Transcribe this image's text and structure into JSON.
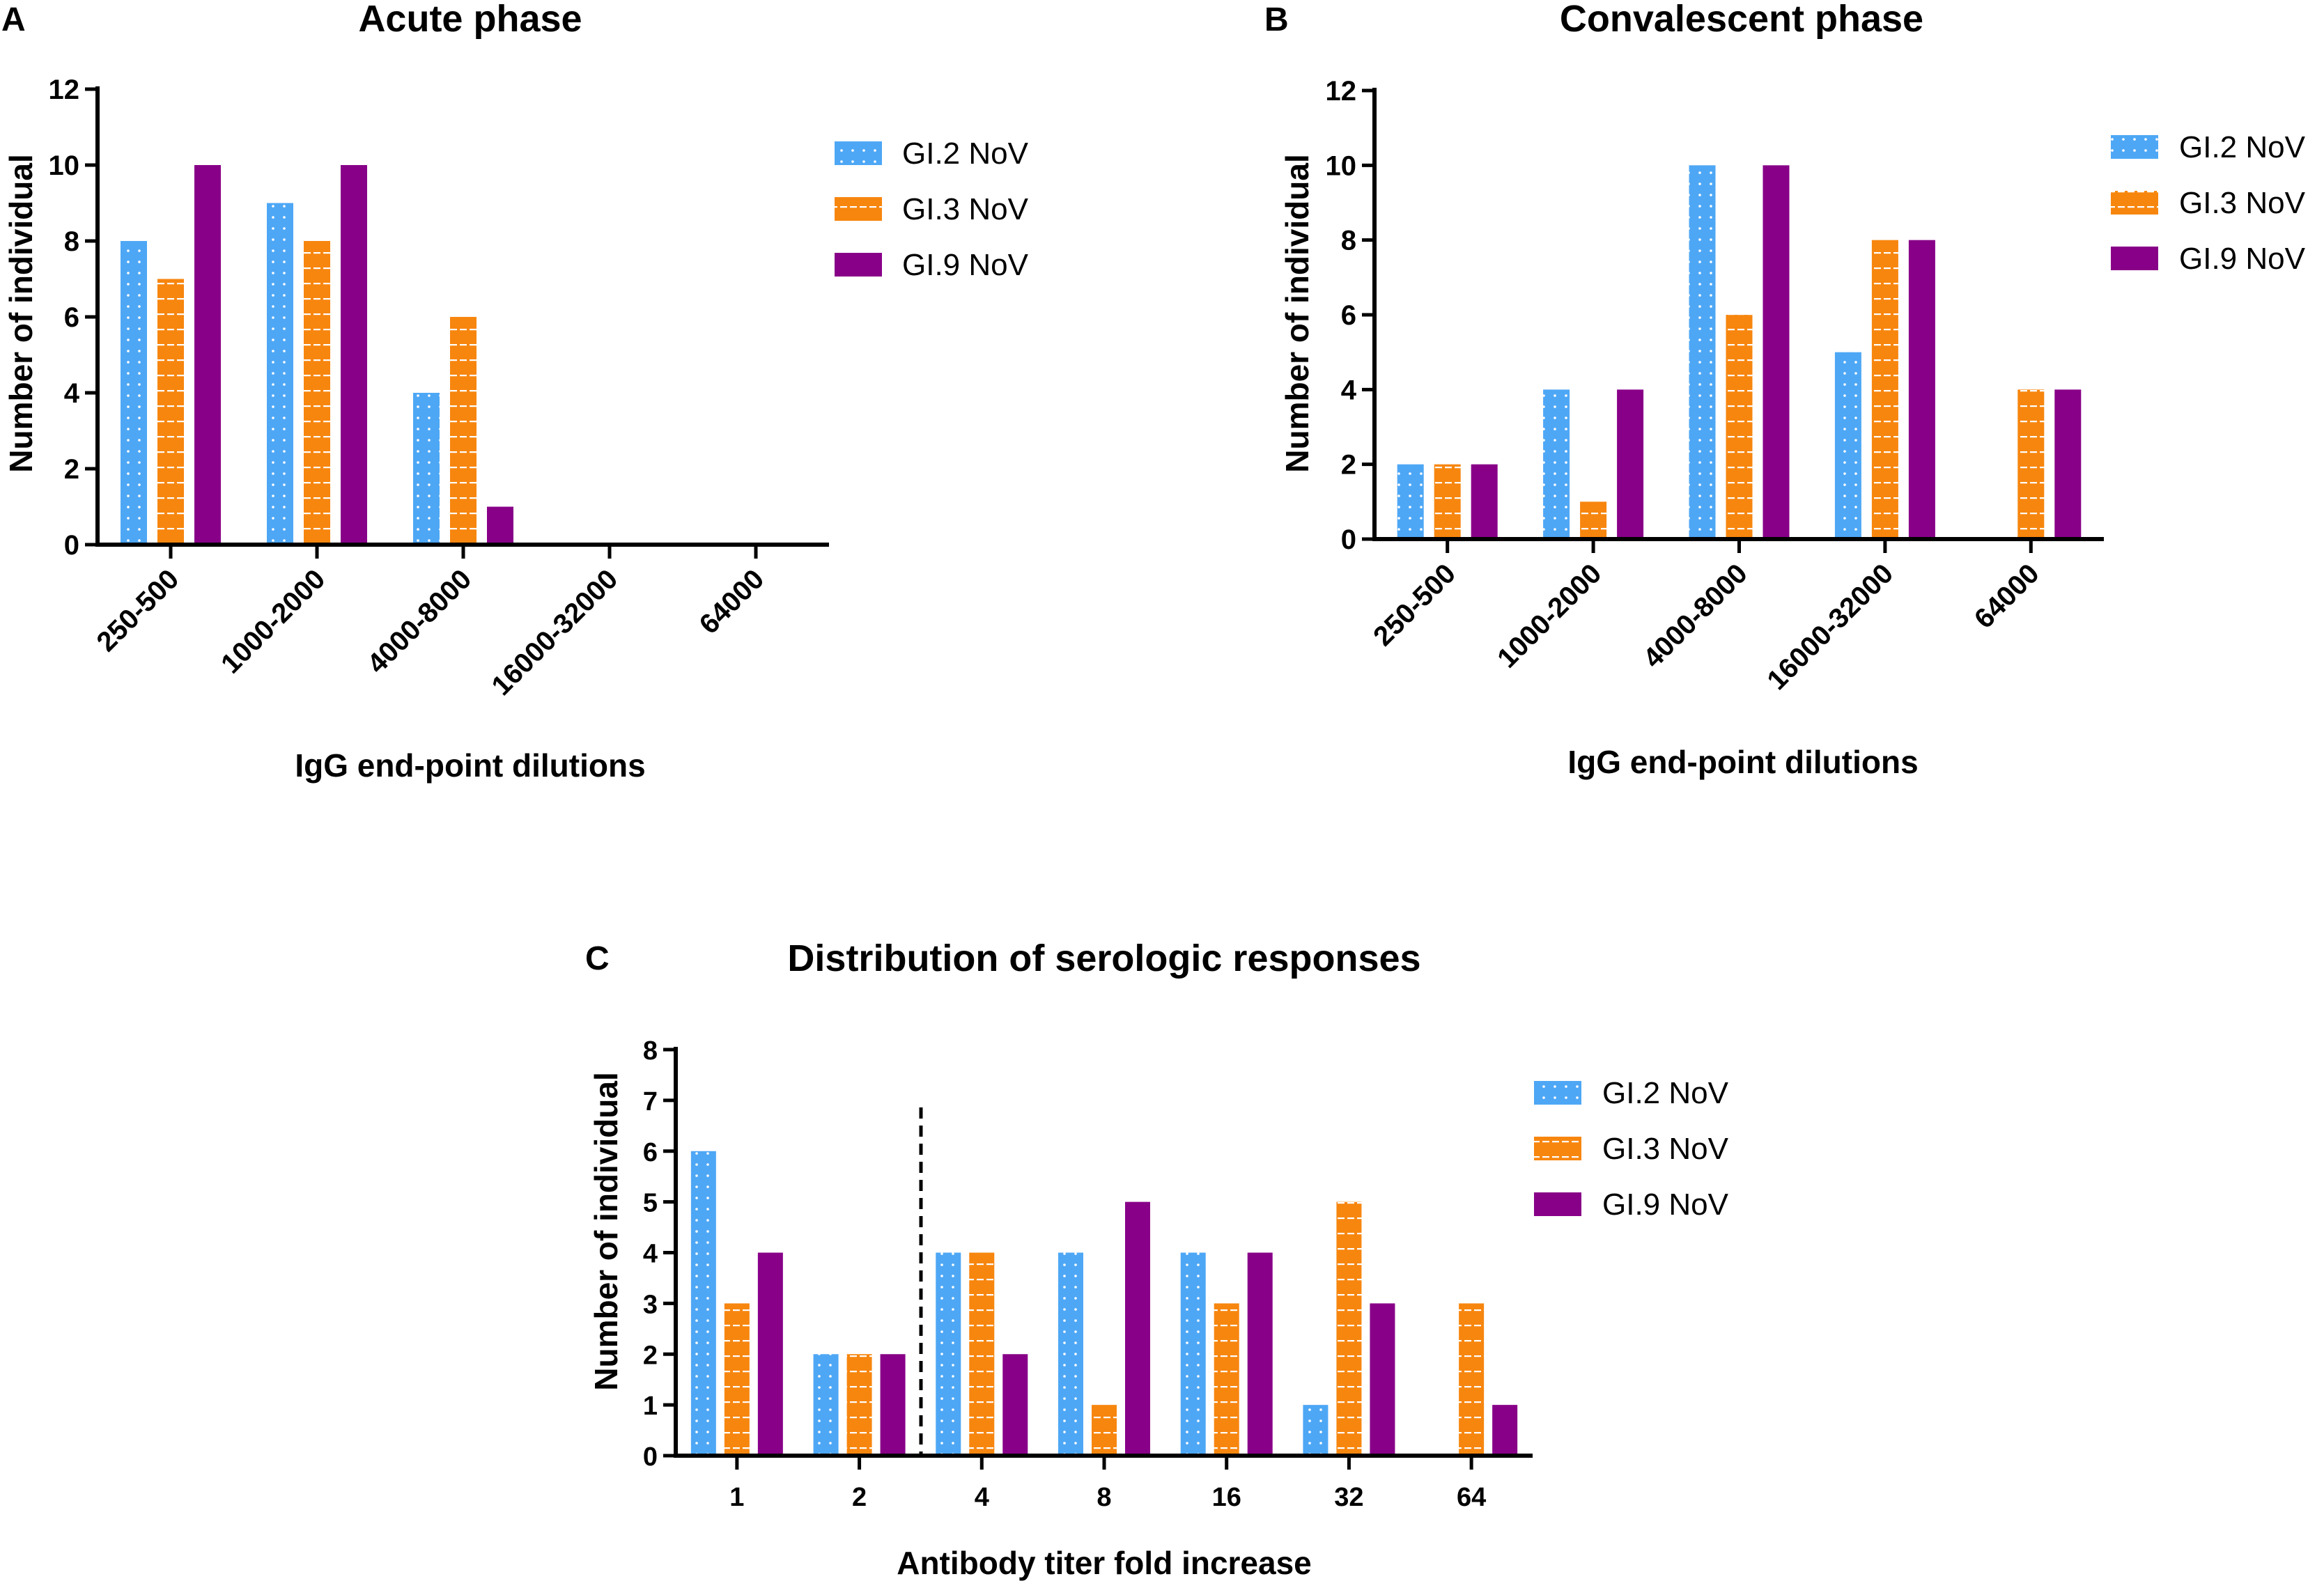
{
  "colors": {
    "gi2": "#4EA7F5",
    "gi3": "#F7860F",
    "gi9": "#880088",
    "axis": "#000000"
  },
  "chart_data": [
    {
      "id": "A",
      "panel_label": "A",
      "type": "bar",
      "title": "Acute phase",
      "xlabel": "IgG end-point dilutions",
      "ylabel": "Number of individual",
      "categories": [
        "250-500",
        "1000-2000",
        "4000-8000",
        "16000-32000",
        "64000"
      ],
      "ylim": [
        0,
        12
      ],
      "yticks": [
        "0",
        "2",
        "4",
        "6",
        "8",
        "10",
        "12"
      ],
      "legend_position": "top-right",
      "series": [
        {
          "name": "GI.2 NoV",
          "values": [
            8,
            9,
            4,
            0,
            0
          ]
        },
        {
          "name": "GI.3 NoV",
          "values": [
            7,
            8,
            6,
            0,
            0
          ]
        },
        {
          "name": "GI.9 NoV",
          "values": [
            10,
            10,
            1,
            0,
            0
          ]
        }
      ]
    },
    {
      "id": "B",
      "panel_label": "B",
      "type": "bar",
      "title": "Convalescent phase",
      "xlabel": "IgG end-point dilutions",
      "ylabel": "Number of individual",
      "categories": [
        "250-500",
        "1000-2000",
        "4000-8000",
        "16000-32000",
        "64000"
      ],
      "ylim": [
        0,
        12
      ],
      "yticks": [
        "0",
        "2",
        "4",
        "6",
        "8",
        "10",
        "12"
      ],
      "legend_position": "top-right",
      "series": [
        {
          "name": "GI.2 NoV",
          "values": [
            2,
            4,
            10,
            5,
            0
          ]
        },
        {
          "name": "GI.3 NoV",
          "values": [
            2,
            1,
            6,
            8,
            4
          ]
        },
        {
          "name": "GI.9 NoV",
          "values": [
            2,
            4,
            10,
            8,
            4
          ]
        }
      ]
    },
    {
      "id": "C",
      "panel_label": "C",
      "type": "bar",
      "title": "Distribution of serologic responses",
      "xlabel": "Antibody titer fold increase",
      "ylabel": "Number of individual",
      "categories": [
        "1",
        "2",
        "4",
        "8",
        "16",
        "32",
        "64"
      ],
      "ylim": [
        0,
        8
      ],
      "yticks": [
        "0",
        "1",
        "2",
        "3",
        "4",
        "5",
        "6",
        "7",
        "8"
      ],
      "legend_position": "top-right",
      "threshold_line": "dashed vertical line between 2 and 4",
      "series": [
        {
          "name": "GI.2 NoV",
          "values": [
            6,
            2,
            4,
            4,
            4,
            1,
            0
          ]
        },
        {
          "name": "GI.3 NoV",
          "values": [
            3,
            2,
            4,
            1,
            3,
            5,
            3
          ]
        },
        {
          "name": "GI.9 NoV",
          "values": [
            4,
            2,
            2,
            5,
            4,
            3,
            1
          ]
        }
      ]
    }
  ]
}
